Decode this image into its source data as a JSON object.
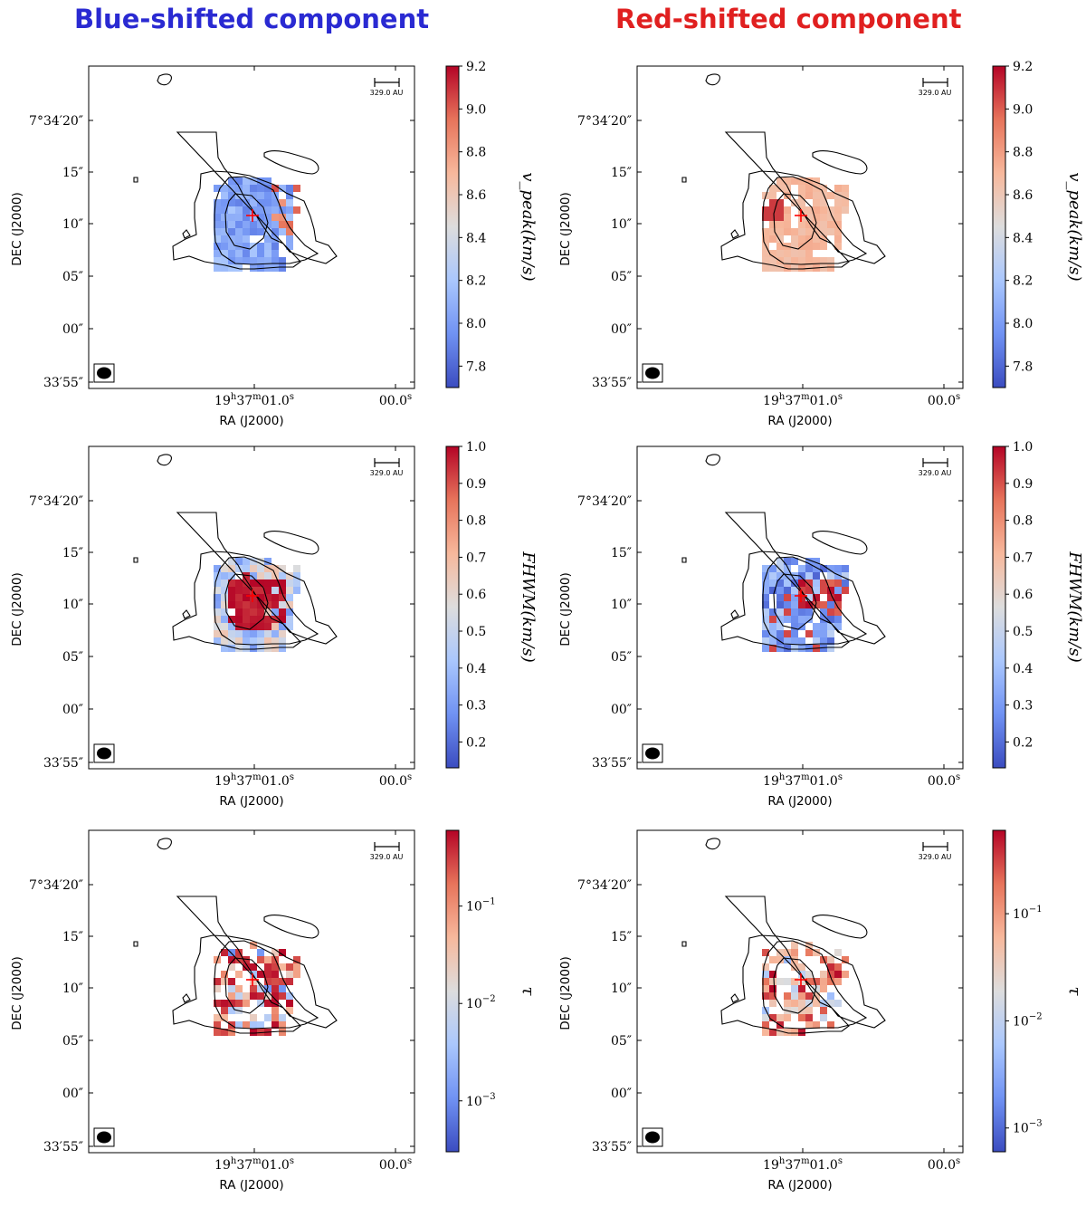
{
  "headings": {
    "blue": "Blue-shifted component",
    "red": "Red-shifted component"
  },
  "axes": {
    "xlabel": "RA (J2000)",
    "ylabel": "DEC (J2000)",
    "yticks": [
      "7°34′20″",
      "15″",
      "10″",
      "05″",
      "00″",
      "33′55″"
    ],
    "xticks": [
      "19h37m01.0s",
      "00.0s"
    ]
  },
  "scalebar_label": "329.0 AU",
  "colors": {
    "blue_title": "#2a2ad2",
    "red_title": "#e02020",
    "cmap": [
      "#3b4cc0",
      "#7092f3",
      "#aac7fd",
      "#dddddd",
      "#f7b89c",
      "#e7745b",
      "#b40426"
    ],
    "contour": "#000000",
    "marker": "#ff0000"
  },
  "chart_data": [
    {
      "type": "heatmap",
      "title": "Blue-shifted component",
      "quantity": "v_peak (km/s)",
      "colorbar_label": "v_peak(km/s)",
      "colorbar_range": [
        7.7,
        9.2
      ],
      "colorbar_ticks": [
        "9.2",
        "9.0",
        "8.8",
        "8.6",
        "8.4",
        "8.2",
        "8.0",
        "7.8"
      ],
      "colorbar_tick_values": [
        9.2,
        9.0,
        8.8,
        8.6,
        8.4,
        8.2,
        8.0,
        7.8
      ],
      "log_scale": false,
      "typical_value": 8.1,
      "pattern": "blue",
      "seed": 11
    },
    {
      "type": "heatmap",
      "title": "Red-shifted component",
      "quantity": "v_peak (km/s)",
      "colorbar_label": "v_peak(km/s)",
      "colorbar_range": [
        7.7,
        9.2
      ],
      "colorbar_ticks": [
        "9.2",
        "9.0",
        "8.8",
        "8.6",
        "8.4",
        "8.2",
        "8.0",
        "7.8"
      ],
      "colorbar_tick_values": [
        9.2,
        9.0,
        8.8,
        8.6,
        8.4,
        8.2,
        8.0,
        7.8
      ],
      "log_scale": false,
      "typical_value": 8.65,
      "pattern": "salmon",
      "seed": 23
    },
    {
      "type": "heatmap",
      "title": "Blue-shifted component",
      "quantity": "FWHM (km/s)",
      "colorbar_label": "FHWM(km/s)",
      "colorbar_range": [
        0.13,
        1.0
      ],
      "colorbar_ticks": [
        "1.0",
        "0.9",
        "0.8",
        "0.7",
        "0.6",
        "0.5",
        "0.4",
        "0.3",
        "0.2"
      ],
      "colorbar_tick_values": [
        1.0,
        0.9,
        0.8,
        0.7,
        0.6,
        0.5,
        0.4,
        0.3,
        0.2
      ],
      "log_scale": false,
      "typical_value": 0.95,
      "pattern": "core-red",
      "seed": 37
    },
    {
      "type": "heatmap",
      "title": "Red-shifted component",
      "quantity": "FWHM (km/s)",
      "colorbar_label": "FHWM(km/s)",
      "colorbar_range": [
        0.13,
        1.0
      ],
      "colorbar_ticks": [
        "1.0",
        "0.9",
        "0.8",
        "0.7",
        "0.6",
        "0.5",
        "0.4",
        "0.3",
        "0.2"
      ],
      "colorbar_tick_values": [
        1.0,
        0.9,
        0.8,
        0.7,
        0.6,
        0.5,
        0.4,
        0.3,
        0.2
      ],
      "log_scale": false,
      "typical_value": 0.3,
      "pattern": "mixed",
      "seed": 41
    },
    {
      "type": "heatmap",
      "title": "Blue-shifted component",
      "quantity": "tau",
      "colorbar_label": "τ",
      "colorbar_range": [
        0.0003,
        0.6
      ],
      "colorbar_ticks": [
        "10^-1",
        "10^-2",
        "10^-3"
      ],
      "colorbar_tick_values": [
        0.1,
        0.01,
        0.001
      ],
      "log_scale": true,
      "typical_value": 0.3,
      "pattern": "sparse",
      "seed": 53
    },
    {
      "type": "heatmap",
      "title": "Red-shifted component",
      "quantity": "tau",
      "colorbar_label": "τ",
      "colorbar_range": [
        0.0006,
        0.6
      ],
      "colorbar_ticks": [
        "10^-1",
        "10^-2",
        "10^-3"
      ],
      "colorbar_tick_values": [
        0.1,
        0.01,
        0.001
      ],
      "log_scale": true,
      "typical_value": 0.15,
      "pattern": "sparse-red",
      "seed": 67
    }
  ]
}
